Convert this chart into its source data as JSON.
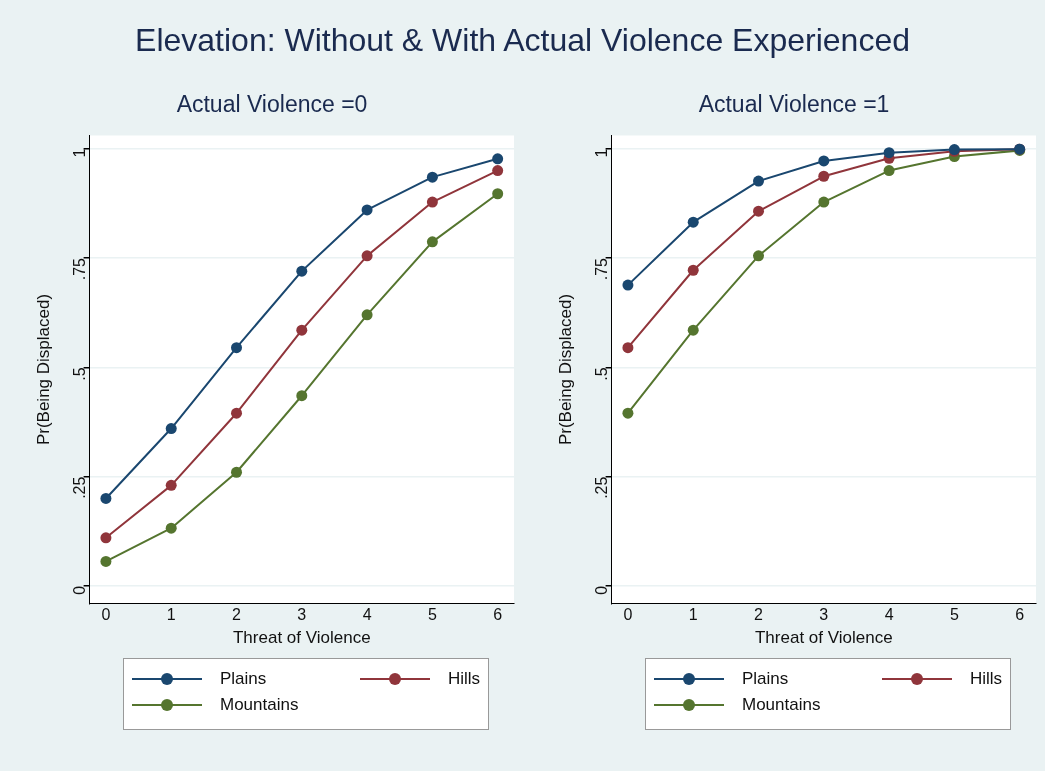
{
  "chart_data": [
    {
      "type": "line",
      "title": "Actual Violence =0",
      "annotations": [
        "Elevation: Without & With Actual Violence Experienced"
      ],
      "xlabel": "Threat of Violence",
      "ylabel": "Pr(Being Displaced)",
      "x": [
        0,
        1,
        2,
        3,
        4,
        5,
        6
      ],
      "series": [
        {
          "name": "Plains",
          "color": "#1a476f",
          "values": [
            0.2,
            0.36,
            0.545,
            0.72,
            0.86,
            0.935,
            0.977
          ]
        },
        {
          "name": "Hills",
          "color": "#90353b",
          "values": [
            0.11,
            0.23,
            0.395,
            0.585,
            0.755,
            0.878,
            0.95
          ]
        },
        {
          "name": "Mountains",
          "color": "#55752f",
          "values": [
            0.056,
            0.132,
            0.26,
            0.435,
            0.62,
            0.787,
            0.897
          ]
        }
      ],
      "xlim": [
        -0.25,
        6.25
      ],
      "xticks": [
        {
          "value": 0,
          "label": "0"
        },
        1,
        2,
        3,
        4,
        5,
        6
      ],
      "ylim": [
        -0.04,
        1.03
      ],
      "yticks": [
        {
          "value": 0,
          "label": "0"
        },
        {
          "value": 0.25,
          "label": ".25"
        },
        {
          "value": 0.5,
          "label": ".5"
        },
        {
          "value": 0.75,
          "label": ".75"
        },
        1
      ],
      "grid": "y",
      "legend": "bottom",
      "marker": "circle",
      "line_style": "solid"
    },
    {
      "type": "line",
      "title": "Actual Violence =1",
      "xlabel": "Threat of Violence",
      "ylabel": "Pr(Being Displaced)",
      "x": [
        0,
        1,
        2,
        3,
        4,
        5,
        6
      ],
      "series": [
        {
          "name": "Plains",
          "color": "#1a476f",
          "values": [
            0.688,
            0.832,
            0.926,
            0.972,
            0.991,
            0.998,
            0.999
          ]
        },
        {
          "name": "Hills",
          "color": "#90353b",
          "values": [
            0.545,
            0.722,
            0.857,
            0.937,
            0.978,
            0.994,
            0.999
          ]
        },
        {
          "name": "Mountains",
          "color": "#55752f",
          "values": [
            0.395,
            0.585,
            0.755,
            0.878,
            0.95,
            0.982,
            0.996
          ]
        }
      ],
      "xlim": [
        -0.25,
        6.25
      ],
      "xticks": [
        {
          "value": 0,
          "label": "0"
        },
        1,
        2,
        3,
        4,
        5,
        6
      ],
      "ylim": [
        -0.04,
        1.03
      ],
      "yticks": [
        {
          "value": 0,
          "label": "0"
        },
        {
          "value": 0.25,
          "label": ".25"
        },
        {
          "value": 0.5,
          "label": ".5"
        },
        {
          "value": 0.75,
          "label": ".75"
        },
        1
      ],
      "grid": "y",
      "legend": "bottom",
      "marker": "circle",
      "line_style": "solid"
    }
  ]
}
